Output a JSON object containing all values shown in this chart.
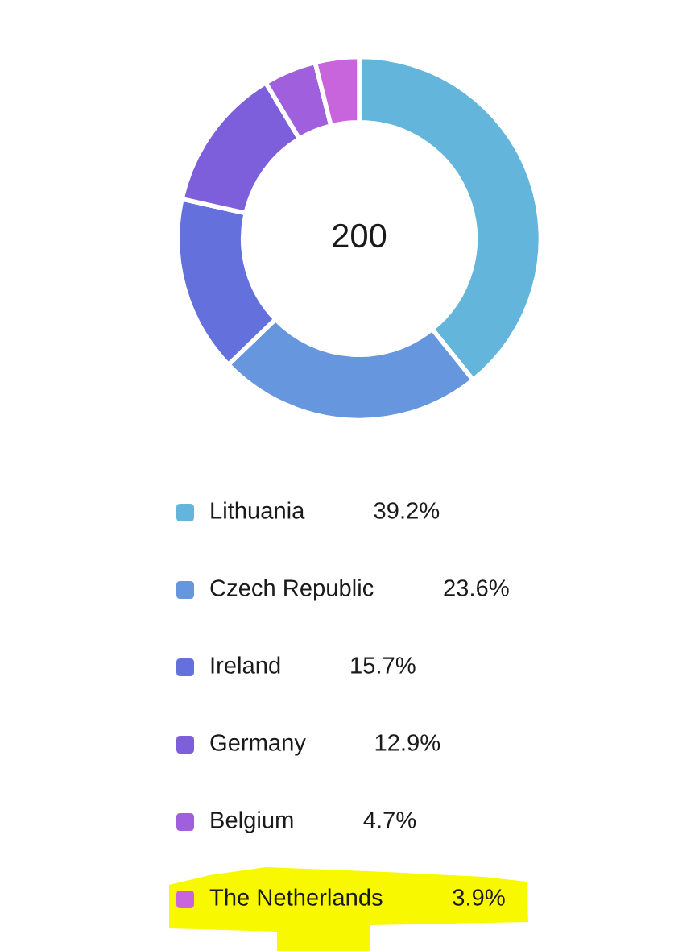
{
  "chart_data": {
    "type": "donut",
    "categories": [
      "Lithuania",
      "Czech Republic",
      "Ireland",
      "Germany",
      "Belgium",
      "The Netherlands"
    ],
    "values": [
      39.2,
      23.6,
      15.7,
      12.9,
      4.7,
      3.9
    ],
    "colors": [
      "#64b5dc",
      "#6596de",
      "#6470dc",
      "#7d5fdc",
      "#a05fdc",
      "#c864dc"
    ],
    "value_labels": [
      "39.2%",
      "23.6%",
      "15.7%",
      "12.9%",
      "4.7%",
      "3.9%"
    ],
    "annotations": [
      "200"
    ],
    "legend": "bottom"
  }
}
